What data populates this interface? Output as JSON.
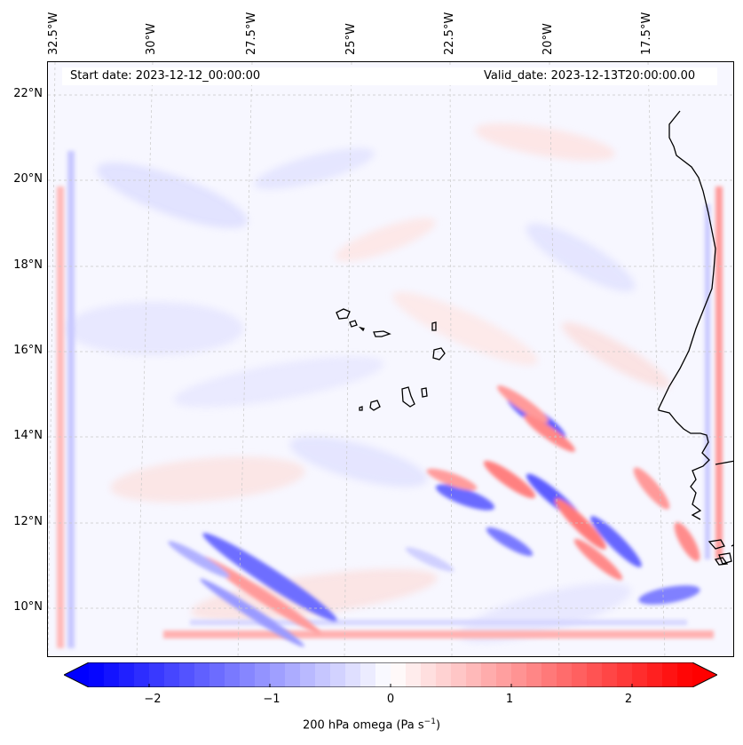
{
  "header": {
    "start_date": "Start date: 2023-12-12_00:00:00",
    "valid_date": "Valid_date: 2023-12-13T20:00:00.00"
  },
  "axes": {
    "lat_labels": [
      "22°N",
      "20°N",
      "18°N",
      "16°N",
      "14°N",
      "12°N",
      "10°N"
    ],
    "lon_labels": [
      "32.5°W",
      "30°W",
      "27.5°W",
      "25°W",
      "22.5°W",
      "20°W",
      "17.5°W"
    ]
  },
  "colorbar": {
    "label_prefix": "200 hPa omega (Pa s",
    "label_exp": "−1",
    "label_suffix": ")",
    "ticks": [
      "−2",
      "−1",
      "0",
      "1",
      "2"
    ],
    "min": -2.5,
    "max": 2.5,
    "negative_color": "#0000ff",
    "positive_color": "#ff0000"
  },
  "map": {
    "gridline_color": "#c8c8c8",
    "coastline_color": "#000000",
    "features": [
      "Cape Verde islands",
      "West African coastline"
    ]
  }
}
